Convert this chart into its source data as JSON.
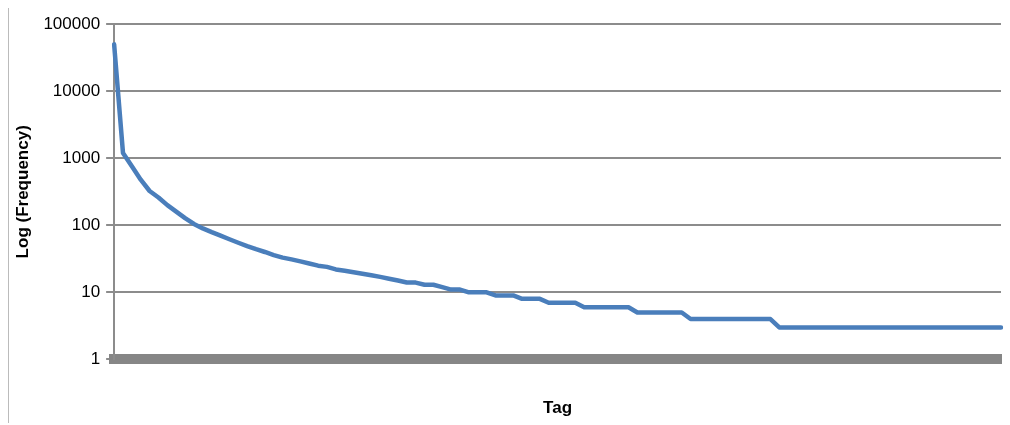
{
  "chart_data": {
    "type": "line",
    "xlabel": "Tag",
    "ylabel": "Log (Frequency)",
    "categories": [
      null,
      null,
      null,
      null,
      null,
      null,
      null,
      null,
      null,
      null,
      null,
      null,
      null,
      null,
      null,
      null,
      null,
      null,
      null,
      null,
      null,
      null,
      null,
      null,
      null,
      null,
      null,
      null,
      null,
      null,
      null,
      null,
      null,
      null,
      null,
      null,
      null,
      null,
      null,
      null,
      null,
      null,
      null,
      null,
      null,
      null,
      null,
      null,
      null,
      null,
      null,
      null,
      null,
      null,
      null,
      null,
      null,
      null,
      null,
      null,
      null,
      null,
      null,
      null,
      null,
      null,
      null,
      null,
      null,
      null,
      null,
      null,
      null,
      null,
      null,
      null,
      null,
      null,
      null,
      null,
      null,
      null,
      null,
      null,
      null,
      null,
      null,
      null,
      null,
      null,
      null,
      null,
      null,
      null,
      null,
      null,
      null,
      null,
      null,
      null,
      null
    ],
    "series": [
      {
        "color": "#4a7ebb",
        "values": [
          50000,
          1200,
          760,
          480,
          325,
          260,
          200,
          160,
          128,
          105,
          90,
          79,
          70,
          62,
          55,
          49,
          44,
          40,
          36,
          33,
          31,
          29,
          27,
          25,
          24,
          22,
          21,
          20,
          19,
          18,
          17,
          16,
          15,
          14,
          14,
          13,
          13,
          12,
          11,
          11,
          10,
          10,
          10,
          9,
          9,
          9,
          8,
          8,
          8,
          7,
          7,
          7,
          7,
          6,
          6,
          6,
          6,
          6,
          6,
          5,
          5,
          5,
          5,
          5,
          5,
          4,
          4,
          4,
          4,
          4,
          4,
          4,
          4,
          4,
          4,
          3,
          3,
          3,
          3,
          3,
          3,
          3,
          3,
          3,
          3,
          3,
          3,
          3,
          3,
          3,
          3,
          3,
          3,
          3,
          3,
          3,
          3,
          3,
          3,
          3,
          3
        ]
      }
    ],
    "log": "y",
    "ylim": [
      1,
      100000
    ],
    "yticks": [
      1,
      10,
      100,
      1000,
      10000,
      100000
    ],
    "grid": "y",
    "legend": false,
    "marker": "none",
    "line_style": "solid"
  }
}
